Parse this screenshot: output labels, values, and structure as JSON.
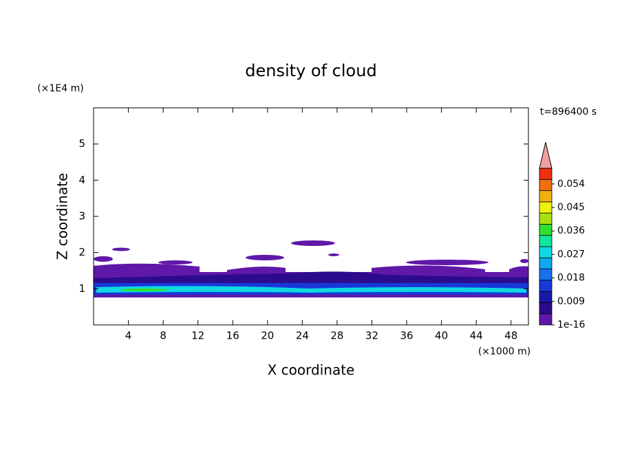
{
  "chart_data": {
    "type": "contour",
    "title": "density of cloud",
    "xlabel": "X coordinate",
    "ylabel": "Z coordinate",
    "xunit": "(×1000 m)",
    "yunit": "(×1E4 m)",
    "time_label": "t=896400 s",
    "xlim": [
      0,
      50
    ],
    "xticks": [
      4,
      8,
      12,
      16,
      20,
      24,
      28,
      32,
      36,
      40,
      44,
      48
    ],
    "ylim": [
      0,
      6
    ],
    "yticks": [
      1,
      2,
      3,
      4,
      5
    ],
    "clim": [
      1e-16,
      0.06
    ],
    "cticks": [
      1e-16,
      0.009,
      0.018,
      0.027,
      0.036,
      0.045,
      0.054
    ],
    "colors": [
      "#6018a8",
      "#2c0c8c",
      "#1818a8",
      "#1838d8",
      "#1870f0",
      "#10a8f0",
      "#10d8e0",
      "#10e8a0",
      "#30e030",
      "#a8e010",
      "#f0f010",
      "#f0b010",
      "#f07010",
      "#f03010"
    ],
    "extend_color": "#f0a0a0"
  }
}
